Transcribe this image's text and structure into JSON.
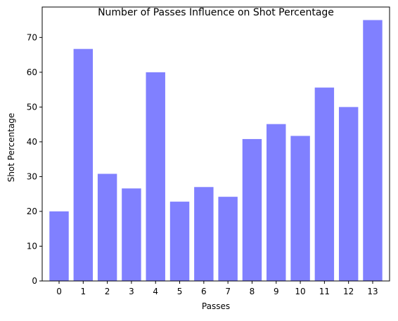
{
  "chart_data": {
    "type": "bar",
    "title": "Number of Passes Influence on Shot Percentage",
    "xlabel": "Passes",
    "ylabel": "Shot Percentage",
    "categories": [
      "0",
      "1",
      "2",
      "3",
      "4",
      "5",
      "6",
      "7",
      "8",
      "9",
      "10",
      "11",
      "12",
      "13"
    ],
    "values": [
      20.0,
      66.7,
      30.8,
      26.6,
      60.0,
      22.8,
      27.0,
      24.2,
      40.8,
      45.1,
      41.7,
      55.6,
      50.0,
      75.0
    ],
    "ylim": [
      0,
      78.75
    ],
    "yticks": [
      "0",
      "10",
      "20",
      "30",
      "40",
      "50",
      "60",
      "70"
    ],
    "bar_color": "#8080ff",
    "grid": false,
    "legend": "none"
  }
}
